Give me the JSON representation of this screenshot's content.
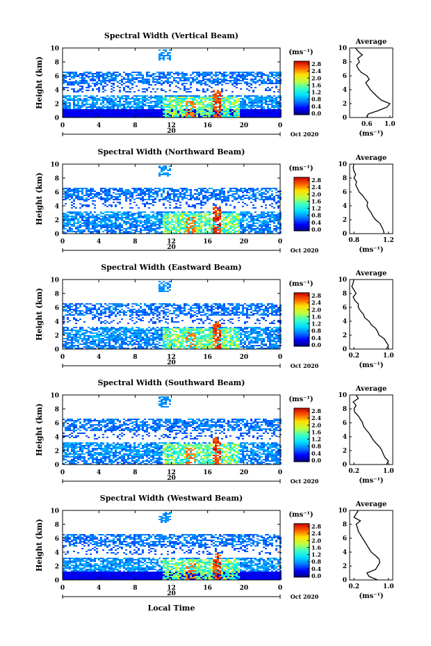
{
  "chart_data": [
    {
      "type": "heatmap",
      "title": "Spectral Width (Vertical Beam)",
      "ylabel": "Height (km)",
      "xticks": [
        "0",
        "4",
        "8",
        "12",
        "16",
        "20",
        "0"
      ],
      "yticks": [
        "0",
        "2",
        "4",
        "6",
        "8",
        "10"
      ],
      "xlim": [
        0,
        24
      ],
      "ylim": [
        0,
        10
      ],
      "date_label": "20",
      "month_label": "Oct 2020",
      "colorbar": {
        "unit": "(ms⁻¹)",
        "ticks": [
          "2.8",
          "2.4",
          "2.0",
          "1.6",
          "1.2",
          "0.8",
          "0.4",
          "0.0"
        ],
        "range": [
          0,
          2.8
        ]
      },
      "profile": {
        "title": "Average",
        "xlabel": "(ms⁻¹)",
        "xticks": [
          "0.6",
          "1.0"
        ],
        "xlim": [
          0.3,
          1.05
        ],
        "yticks": [
          "0",
          "2",
          "4",
          "6",
          "8",
          "10"
        ],
        "values": [
          [
            0.0,
            0.6
          ],
          [
            0.5,
            0.62
          ],
          [
            1.0,
            0.8
          ],
          [
            1.5,
            0.95
          ],
          [
            2.0,
            1.0
          ],
          [
            2.5,
            0.85
          ],
          [
            3.0,
            0.78
          ],
          [
            3.5,
            0.72
          ],
          [
            4.0,
            0.66
          ],
          [
            4.5,
            0.62
          ],
          [
            5.0,
            0.58
          ],
          [
            5.5,
            0.64
          ],
          [
            6.0,
            0.6
          ],
          [
            6.5,
            0.5
          ],
          [
            7.0,
            0.45
          ],
          [
            7.5,
            0.42
          ],
          [
            8.0,
            0.47
          ],
          [
            8.5,
            0.44
          ],
          [
            9.0,
            0.52
          ],
          [
            9.5,
            0.45
          ],
          [
            10.0,
            0.4
          ]
        ]
      }
    },
    {
      "type": "heatmap",
      "title": "Spectral Width (Northward Beam)",
      "ylabel": "Height (km)",
      "xticks": [
        "0",
        "4",
        "8",
        "12",
        "16",
        "20",
        "0"
      ],
      "yticks": [
        "0",
        "2",
        "4",
        "6",
        "8",
        "10"
      ],
      "xlim": [
        0,
        24
      ],
      "ylim": [
        0,
        10
      ],
      "date_label": "20",
      "month_label": "Oct 2020",
      "colorbar": {
        "unit": "(ms⁻¹)",
        "ticks": [
          "2.8",
          "2.4",
          "2.0",
          "1.6",
          "1.2",
          "0.8",
          "0.4",
          "0.0"
        ],
        "range": [
          0,
          2.8
        ]
      },
      "profile": {
        "title": "Average",
        "xlabel": "(ms⁻¹)",
        "xticks": [
          "0.8",
          "1.2"
        ],
        "xlim": [
          0.75,
          1.25
        ],
        "yticks": [
          "0",
          "2",
          "4",
          "6",
          "8",
          "10"
        ],
        "values": [
          [
            0.0,
            1.15
          ],
          [
            0.5,
            1.14
          ],
          [
            1.0,
            1.12
          ],
          [
            1.5,
            1.1
          ],
          [
            2.0,
            1.05
          ],
          [
            2.5,
            1.02
          ],
          [
            3.0,
            1.0
          ],
          [
            3.5,
            0.97
          ],
          [
            4.0,
            0.95
          ],
          [
            4.5,
            0.96
          ],
          [
            5.0,
            0.93
          ],
          [
            5.5,
            0.9
          ],
          [
            6.0,
            0.86
          ],
          [
            6.5,
            0.84
          ],
          [
            7.0,
            0.82
          ],
          [
            7.5,
            0.83
          ],
          [
            8.0,
            0.8
          ],
          [
            8.5,
            0.82
          ],
          [
            9.0,
            0.8
          ],
          [
            9.5,
            0.79
          ],
          [
            10.0,
            0.8
          ]
        ]
      }
    },
    {
      "type": "heatmap",
      "title": "Spectral Width (Eastward Beam)",
      "ylabel": "Height (km)",
      "xticks": [
        "0",
        "4",
        "8",
        "12",
        "16",
        "20",
        "0"
      ],
      "yticks": [
        "0",
        "2",
        "4",
        "6",
        "8",
        "10"
      ],
      "xlim": [
        0,
        24
      ],
      "ylim": [
        0,
        10
      ],
      "date_label": "20",
      "month_label": "Oct 2020",
      "colorbar": {
        "unit": "(ms⁻¹)",
        "ticks": [
          "2.8",
          "2.4",
          "2.0",
          "1.6",
          "1.2",
          "0.8",
          "0.4",
          "0.0"
        ],
        "range": [
          0,
          2.8
        ]
      },
      "profile": {
        "title": "Average",
        "xlabel": "(ms⁻¹)",
        "xticks": [
          "0.2",
          "1.0"
        ],
        "xlim": [
          0.1,
          1.1
        ],
        "yticks": [
          "0",
          "2",
          "4",
          "6",
          "8",
          "10"
        ],
        "values": [
          [
            0.0,
            0.95
          ],
          [
            0.5,
            1.0
          ],
          [
            1.0,
            0.95
          ],
          [
            1.5,
            0.9
          ],
          [
            2.0,
            0.78
          ],
          [
            2.5,
            0.75
          ],
          [
            3.0,
            0.7
          ],
          [
            3.5,
            0.6
          ],
          [
            4.0,
            0.55
          ],
          [
            4.5,
            0.45
          ],
          [
            5.0,
            0.42
          ],
          [
            5.5,
            0.35
          ],
          [
            6.0,
            0.3
          ],
          [
            6.5,
            0.3
          ],
          [
            7.0,
            0.22
          ],
          [
            7.5,
            0.18
          ],
          [
            8.0,
            0.25
          ],
          [
            8.5,
            0.2
          ],
          [
            9.0,
            0.15
          ],
          [
            9.5,
            0.18
          ],
          [
            10.0,
            0.2
          ]
        ]
      }
    },
    {
      "type": "heatmap",
      "title": "Spectral Width (Southward Beam)",
      "ylabel": "Height (km)",
      "xticks": [
        "0",
        "4",
        "8",
        "12",
        "16",
        "20",
        "0"
      ],
      "yticks": [
        "0",
        "2",
        "4",
        "6",
        "8",
        "10"
      ],
      "xlim": [
        0,
        24
      ],
      "ylim": [
        0,
        10
      ],
      "date_label": "20",
      "month_label": "Oct 2020",
      "colorbar": {
        "unit": "(ms⁻¹)",
        "ticks": [
          "2.8",
          "2.4",
          "2.0",
          "1.6",
          "1.2",
          "0.8",
          "0.4",
          "0.0"
        ],
        "range": [
          0,
          2.8
        ]
      },
      "profile": {
        "title": "Average",
        "xlabel": "(ms⁻¹)",
        "xticks": [
          "0.2",
          "1.0"
        ],
        "xlim": [
          0.1,
          1.1
        ],
        "yticks": [
          "0",
          "2",
          "4",
          "6",
          "8",
          "10"
        ],
        "values": [
          [
            0.0,
            0.95
          ],
          [
            0.5,
            1.0
          ],
          [
            1.0,
            0.92
          ],
          [
            1.5,
            0.88
          ],
          [
            2.0,
            0.85
          ],
          [
            2.5,
            0.8
          ],
          [
            3.0,
            0.72
          ],
          [
            3.5,
            0.65
          ],
          [
            4.0,
            0.6
          ],
          [
            4.5,
            0.55
          ],
          [
            5.0,
            0.48
          ],
          [
            5.5,
            0.42
          ],
          [
            6.0,
            0.4
          ],
          [
            6.5,
            0.35
          ],
          [
            7.0,
            0.3
          ],
          [
            7.5,
            0.22
          ],
          [
            8.0,
            0.2
          ],
          [
            8.5,
            0.25
          ],
          [
            9.0,
            0.18
          ],
          [
            9.5,
            0.3
          ],
          [
            10.0,
            0.25
          ]
        ]
      }
    },
    {
      "type": "heatmap",
      "title": "Spectral Width (Westward Beam)",
      "ylabel": "Height (km)",
      "xticks": [
        "0",
        "4",
        "8",
        "12",
        "16",
        "20",
        "0"
      ],
      "yticks": [
        "0",
        "2",
        "4",
        "6",
        "8",
        "10"
      ],
      "xlim": [
        0,
        24
      ],
      "ylim": [
        0,
        10
      ],
      "date_label": "20",
      "month_label": "Oct 2020",
      "xlabel": "Local Time",
      "colorbar": {
        "unit": "(ms⁻¹)",
        "ticks": [
          "2.8",
          "2.4",
          "2.0",
          "1.6",
          "1.2",
          "0.8",
          "0.4",
          "0.0"
        ],
        "range": [
          0,
          2.8
        ]
      },
      "profile": {
        "title": "Average",
        "xlabel": "(ms⁻¹)",
        "xticks": [
          "0.2",
          "1.0"
        ],
        "xlim": [
          0.1,
          1.1
        ],
        "yticks": [
          "0",
          "2",
          "4",
          "6",
          "8",
          "10"
        ],
        "values": [
          [
            0.0,
            0.75
          ],
          [
            0.5,
            0.55
          ],
          [
            1.0,
            0.5
          ],
          [
            1.5,
            0.7
          ],
          [
            2.0,
            0.75
          ],
          [
            2.5,
            0.8
          ],
          [
            3.0,
            0.78
          ],
          [
            3.5,
            0.7
          ],
          [
            4.0,
            0.6
          ],
          [
            4.5,
            0.55
          ],
          [
            5.0,
            0.5
          ],
          [
            5.5,
            0.45
          ],
          [
            6.0,
            0.4
          ],
          [
            6.5,
            0.35
          ],
          [
            7.0,
            0.3
          ],
          [
            7.5,
            0.28
          ],
          [
            8.0,
            0.25
          ],
          [
            8.5,
            0.35
          ],
          [
            9.0,
            0.2
          ],
          [
            9.5,
            0.25
          ],
          [
            10.0,
            0.3
          ]
        ]
      }
    }
  ]
}
